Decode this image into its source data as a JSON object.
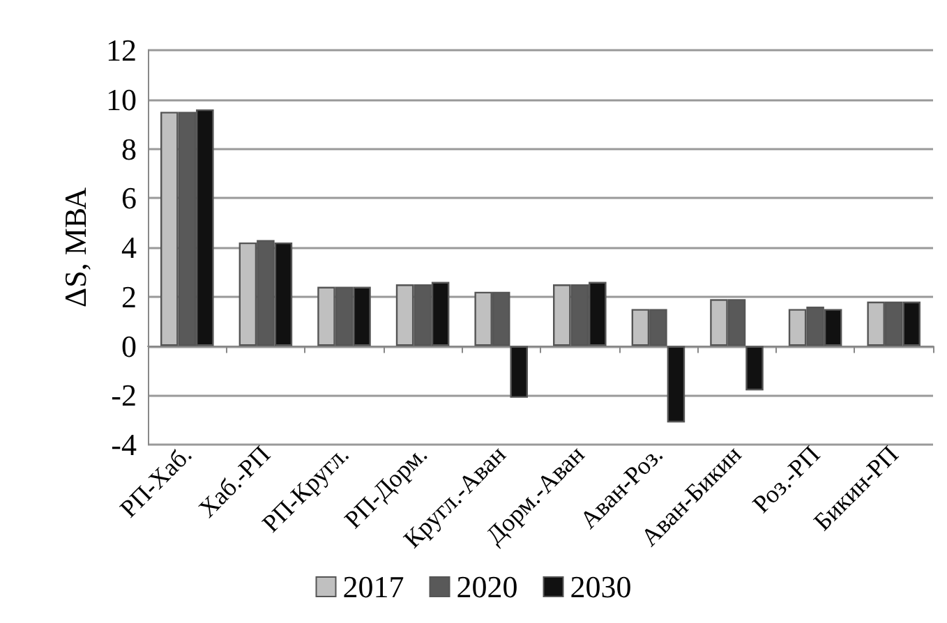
{
  "chart_data": {
    "type": "bar",
    "ylabel": "ΔS, МВА",
    "categories": [
      "РП-Хаб.",
      "Хаб.-РП",
      "РП-Кругл.",
      "РП-Дорм.",
      "Кругл.-Аван",
      "Дорм.-Аван",
      "Аван-Роз.",
      "Аван-Бикин",
      "Роз.-РП",
      "Бикин-РП"
    ],
    "series": [
      {
        "name": "2017",
        "color": "#c0c0c0",
        "values": [
          9.5,
          4.2,
          2.4,
          2.5,
          2.2,
          2.5,
          1.5,
          1.9,
          1.5,
          1.8
        ]
      },
      {
        "name": "2020",
        "color": "#595959",
        "values": [
          9.5,
          4.3,
          2.4,
          2.5,
          2.2,
          2.5,
          1.5,
          1.9,
          1.6,
          1.8
        ]
      },
      {
        "name": "2030",
        "color": "#111111",
        "values": [
          9.6,
          4.2,
          2.4,
          2.6,
          -2.1,
          2.6,
          -3.1,
          -1.8,
          1.5,
          1.8
        ]
      }
    ],
    "ylim": [
      -4,
      12
    ],
    "yticks": [
      -4,
      -2,
      0,
      2,
      4,
      6,
      8,
      10,
      12
    ],
    "grid": "y",
    "legend": "bottom"
  }
}
